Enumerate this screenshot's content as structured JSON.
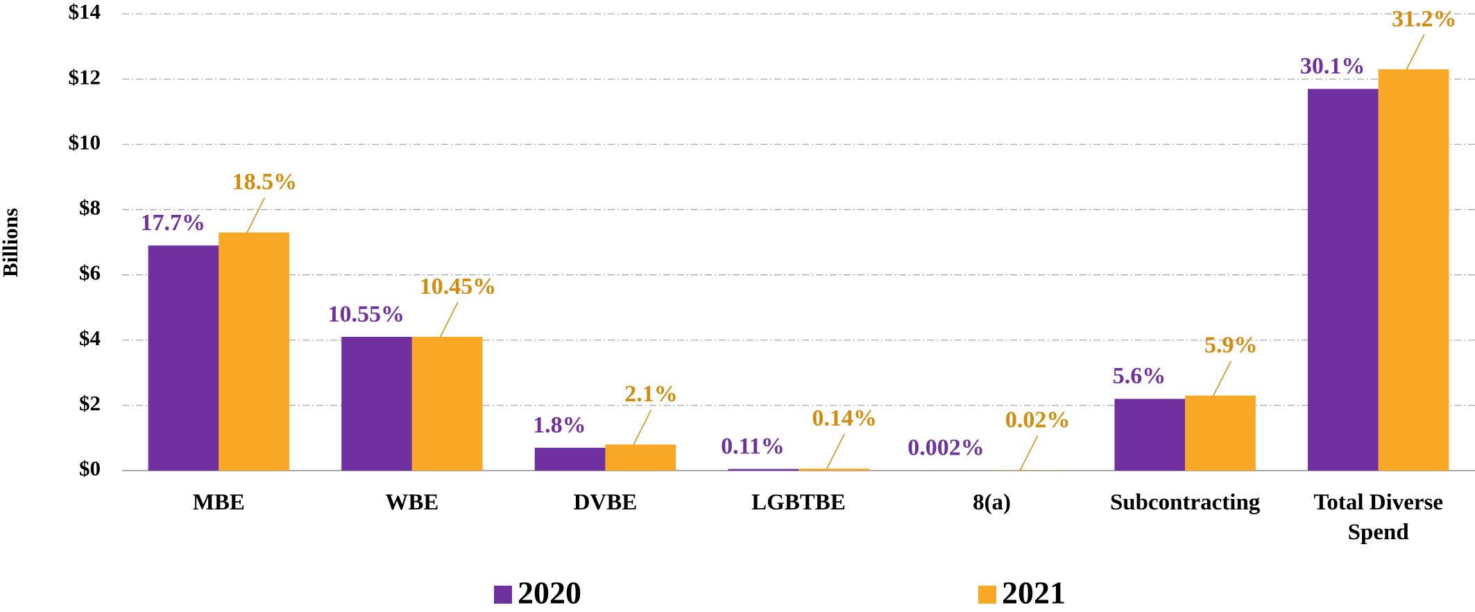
{
  "chart_data": {
    "type": "bar",
    "y_label": "Billions",
    "categories": [
      "MBE",
      "WBE",
      "DVBE",
      "LGBTBE",
      "8(a)",
      "Subcontracting",
      "Total Diverse Spend"
    ],
    "series": [
      {
        "name": "2020",
        "color": "#7030a0",
        "label_color": "#7030a0",
        "values": [
          6.9,
          4.1,
          0.7,
          0.05,
          0.001,
          2.2,
          11.7
        ],
        "labels": [
          "17.7%",
          "10.55%",
          "1.8%",
          "0.11%",
          "0.002%",
          "5.6%",
          "30.1%"
        ]
      },
      {
        "name": "2021",
        "color": "#f9a825",
        "label_color": "#d68a0c",
        "values": [
          7.3,
          4.1,
          0.8,
          0.06,
          0.01,
          2.3,
          12.3
        ],
        "labels": [
          "18.5%",
          "10.45%",
          "2.1%",
          "0.14%",
          "0.02%",
          "5.9%",
          "31.2%"
        ]
      }
    ],
    "ylim": [
      0,
      14
    ],
    "yticks": [
      {
        "value": 0,
        "label": "$0"
      },
      {
        "value": 2,
        "label": "$2"
      },
      {
        "value": 4,
        "label": "$4"
      },
      {
        "value": 6,
        "label": "$6"
      },
      {
        "value": 8,
        "label": "$8"
      },
      {
        "value": 10,
        "label": "$10"
      },
      {
        "value": 12,
        "label": "$12"
      },
      {
        "value": 14,
        "label": "$14"
      }
    ],
    "grid": true,
    "legend": "bottom"
  }
}
